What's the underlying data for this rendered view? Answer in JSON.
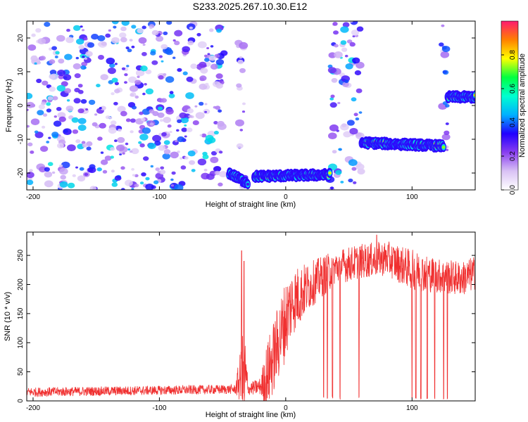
{
  "title": "S233.2025.267.10.30.E12",
  "chart_data": [
    {
      "type": "heatmap",
      "xlabel": "Height of straight line (km)",
      "ylabel": "Frequency (Hz)",
      "xlim": [
        -205,
        150
      ],
      "ylim": [
        -25,
        25
      ],
      "xticks": [
        -200,
        -100,
        0,
        100
      ],
      "yticks": [
        -20,
        -10,
        0,
        10,
        20
      ],
      "colorbar": {
        "label": "Normalized spectral amplitude",
        "range": [
          0,
          1
        ],
        "ticks": [
          "0.0",
          "0.2",
          "0.4",
          "0.6",
          "0.8"
        ],
        "colors": [
          "#ffffff",
          "#d9c2f5",
          "#8a3ff0",
          "#2000ff",
          "#00b0ff",
          "#00ffd0",
          "#00ff40",
          "#ffff00",
          "#ff8000",
          "#ff1a70"
        ]
      },
      "noise_regions": [
        {
          "x_range": [
            -205,
            -48
          ],
          "level": 0.2
        },
        {
          "x_range": [
            -38,
            -32
          ],
          "level": 0.12
        },
        {
          "x_range": [
            35,
            60
          ],
          "level": 0.2
        },
        {
          "x_range": [
            123,
            128
          ],
          "level": 0.15
        }
      ],
      "ridges": [
        {
          "x_range": [
            -45,
            -30
          ],
          "freq": [
            -20,
            -23
          ],
          "peak": 0.35
        },
        {
          "x_range": [
            -25,
            35
          ],
          "freq": [
            -21,
            -20.5
          ],
          "peak": 0.9
        },
        {
          "x_range": [
            60,
            125
          ],
          "freq": [
            -11,
            -12
          ],
          "peak": 0.85
        },
        {
          "x_range": [
            128,
            150
          ],
          "freq": [
            2.5,
            2.5
          ],
          "peak": 0.95
        }
      ]
    },
    {
      "type": "line",
      "xlabel": "Height of straight line (km)",
      "ylabel": "SNR (10 * v/v)",
      "xlim": [
        -205,
        150
      ],
      "ylim": [
        0,
        290
      ],
      "xticks": [
        -200,
        -100,
        0,
        100
      ],
      "yticks": [
        0,
        50,
        100,
        150,
        200,
        250
      ],
      "series_color": "#f03030",
      "envelope": {
        "x": [
          -205,
          -40,
          -36,
          -33,
          -31,
          -30,
          -20,
          -15,
          0,
          5,
          20,
          40,
          60,
          80,
          100,
          120,
          140,
          150
        ],
        "mean": [
          15,
          20,
          40,
          35,
          30,
          20,
          25,
          40,
          140,
          170,
          200,
          230,
          240,
          245,
          225,
          215,
          210,
          220
        ],
        "amp": [
          8,
          8,
          45,
          100,
          60,
          10,
          15,
          60,
          70,
          60,
          40,
          30,
          30,
          30,
          35,
          30,
          30,
          30
        ]
      },
      "spikes": [
        {
          "x": -35,
          "y": 258
        },
        {
          "x": -33,
          "y": 240
        },
        {
          "x": 72,
          "y": 285
        }
      ],
      "dropouts": [
        30,
        33,
        37,
        43,
        58,
        100,
        103,
        107,
        112,
        118,
        125,
        128
      ]
    }
  ]
}
